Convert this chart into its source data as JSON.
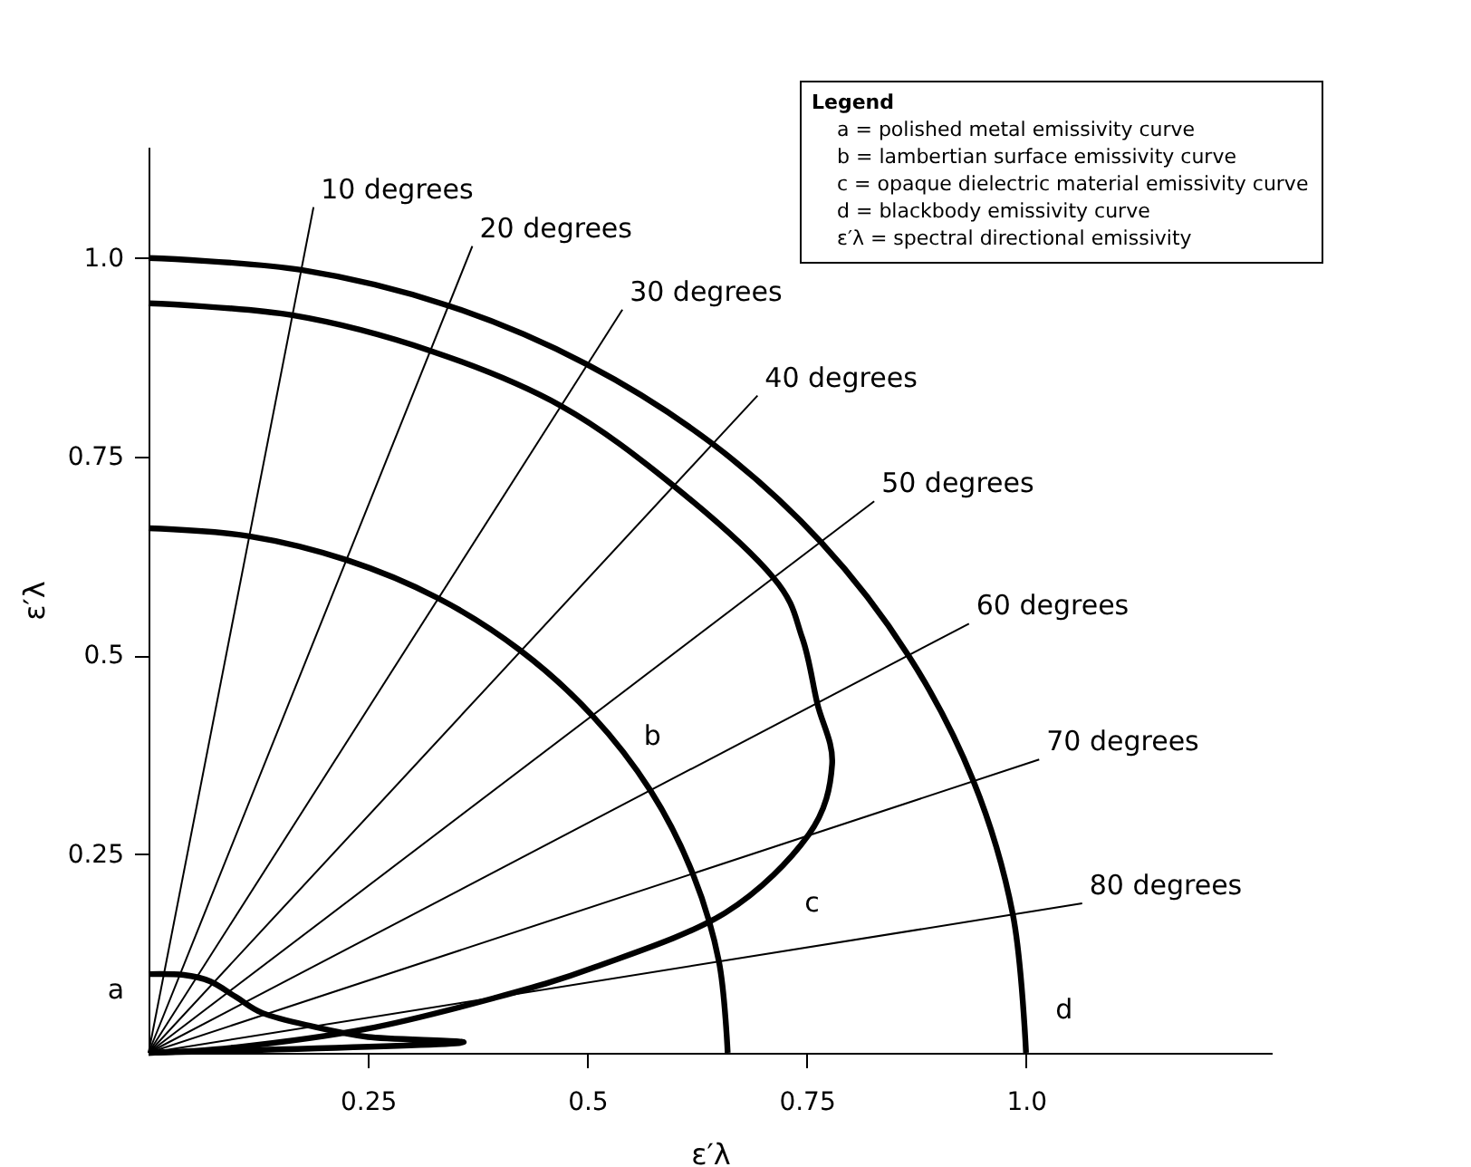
{
  "chart_data": {
    "type": "line",
    "xlabel": "ε′λ",
    "ylabel": "ε′λ",
    "legend_title": "Legend",
    "xlim": [
      0,
      1.28
    ],
    "ylim": [
      0,
      1.14
    ],
    "xticks": [
      0.25,
      0.5,
      0.75,
      {
        "value": 1,
        "label": "1.0"
      }
    ],
    "yticks": [
      0.25,
      0.5,
      0.75,
      {
        "value": 1,
        "label": "1.0"
      }
    ],
    "grid": false,
    "legend": "top right",
    "series": [
      {
        "color": "#000000",
        "x": [
          0,
          0.04,
          0.07,
          0.1,
          0.13,
          0.18,
          0.25,
          0.35,
          0
        ],
        "values": [
          0.099,
          0.098,
          0.09,
          0.07,
          0.05,
          0.035,
          0.02,
          0.012,
          0
        ]
      },
      {
        "color": "#000000",
        "x": [
          0,
          0.115,
          0.226,
          0.33,
          0.424,
          0.506,
          0.572,
          0.62,
          0.65,
          0.66
        ],
        "values": [
          0.66,
          0.65,
          0.62,
          0.572,
          0.506,
          0.424,
          0.33,
          0.226,
          0.115,
          0
        ]
      },
      {
        "color": "#000000",
        "x": [
          0,
          0.164,
          0.322,
          0.47,
          0.6,
          0.712,
          0.745,
          0.762,
          0.779,
          0.752,
          0.657,
          0.509,
          0.394,
          0.248,
          0.1,
          0
        ],
        "values": [
          0.943,
          0.928,
          0.883,
          0.814,
          0.712,
          0.598,
          0.522,
          0.44,
          0.363,
          0.274,
          0.176,
          0.108,
          0.069,
          0.03,
          0.007,
          0
        ]
      },
      {
        "color": "#000000",
        "x": [
          0,
          0.174,
          0.342,
          0.5,
          0.643,
          0.766,
          0.866,
          0.94,
          0.985,
          1
        ],
        "values": [
          1,
          0.985,
          0.94,
          0.866,
          0.766,
          0.643,
          0.5,
          0.342,
          0.174,
          0
        ]
      },
      {
        "name": "10 degrees",
        "color": "#000000",
        "x": [
          0,
          0.188
        ],
        "values": [
          0,
          1.064
        ]
      },
      {
        "name": "20 degrees",
        "color": "#000000",
        "x": [
          0,
          0.369
        ],
        "values": [
          0,
          1.015
        ]
      },
      {
        "name": "30 degrees",
        "color": "#000000",
        "x": [
          0,
          0.54
        ],
        "values": [
          0,
          0.935
        ]
      },
      {
        "name": "40 degrees",
        "color": "#000000",
        "x": [
          0,
          0.694
        ],
        "values": [
          0,
          0.827
        ]
      },
      {
        "name": "50 degrees",
        "color": "#000000",
        "x": [
          0,
          0.827
        ],
        "values": [
          0,
          0.694
        ]
      },
      {
        "name": "60 degrees",
        "color": "#000000",
        "x": [
          0,
          0.935
        ],
        "values": [
          0,
          0.54
        ]
      },
      {
        "name": "70 degrees",
        "color": "#000000",
        "x": [
          0,
          1.015
        ],
        "values": [
          0,
          0.369
        ]
      },
      {
        "name": "80 degrees",
        "color": "#000000",
        "x": [
          0,
          1.064
        ],
        "values": [
          0,
          0.188
        ]
      }
    ],
    "annotations": [
      "a = polished metal emissivity curve",
      "b = lambertian surface emissivity curve",
      "c = opaque dielectric material emissivity curve",
      "d = blackbody emissivity curve",
      "ε′λ = spectral directional emissivity",
      {
        "text": "a",
        "x": 0,
        "y": 0.1
      },
      {
        "text": "b",
        "x": 0.506,
        "y": 0.424
      },
      {
        "text": "c",
        "x": 0.752,
        "y": 0.274
      },
      {
        "text": "d",
        "x": 1,
        "y": 0
      }
    ]
  }
}
